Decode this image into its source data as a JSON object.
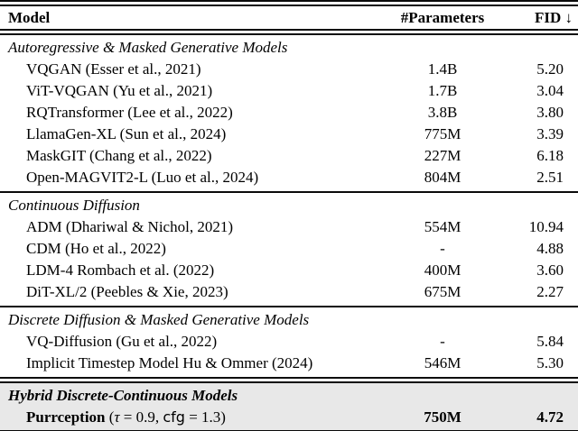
{
  "table": {
    "columns": {
      "model": "Model",
      "params": "#Parameters",
      "fid": "FID ↓"
    },
    "colors": {
      "highlight_bg": "#e8e8e8",
      "rule": "#0a0a0a",
      "text": "#000000"
    },
    "sections": [
      {
        "label": "Autoregressive & Masked Generative Models",
        "rows": [
          {
            "name": "VQGAN (Esser et al., 2021)",
            "params": "1.4B",
            "fid": "5.20"
          },
          {
            "name": "ViT-VQGAN (Yu et al., 2021)",
            "params": "1.7B",
            "fid": "3.04"
          },
          {
            "name": "RQTransformer (Lee et al., 2022)",
            "params": "3.8B",
            "fid": "3.80"
          },
          {
            "name": "LlamaGen-XL (Sun et al., 2024)",
            "params": "775M",
            "fid": "3.39"
          },
          {
            "name": "MaskGIT (Chang et al., 2022)",
            "params": "227M",
            "fid": "6.18"
          },
          {
            "name": "Open-MAGVIT2-L (Luo et al., 2024)",
            "params": "804M",
            "fid": "2.51"
          }
        ]
      },
      {
        "label": "Continuous Diffusion",
        "rows": [
          {
            "name": "ADM (Dhariwal & Nichol, 2021)",
            "params": "554M",
            "fid": "10.94"
          },
          {
            "name": "CDM (Ho et al., 2022)",
            "params": "-",
            "fid": "4.88"
          },
          {
            "name": "LDM-4 Rombach et al. (2022)",
            "params": "400M",
            "fid": "3.60"
          },
          {
            "name": "DiT-XL/2 (Peebles & Xie, 2023)",
            "params": "675M",
            "fid": "2.27"
          }
        ]
      },
      {
        "label": "Discrete Diffusion & Masked Generative Models",
        "rows": [
          {
            "name": "VQ-Diffusion (Gu et al., 2022)",
            "params": "-",
            "fid": "5.84"
          },
          {
            "name": "Implicit Timestep Model Hu & Ommer (2024)",
            "params": "546M",
            "fid": "5.30"
          }
        ]
      },
      {
        "label": "Hybrid Discrete-Continuous Models",
        "rows": [
          {
            "name_bold": "Purrception",
            "name_open": " (",
            "name_tau": "τ",
            "name_mid": " = 0.9, ",
            "name_cfg": "cfg",
            "name_close": " = 1.3)",
            "params": "750M",
            "fid": "4.72"
          }
        ]
      }
    ]
  }
}
